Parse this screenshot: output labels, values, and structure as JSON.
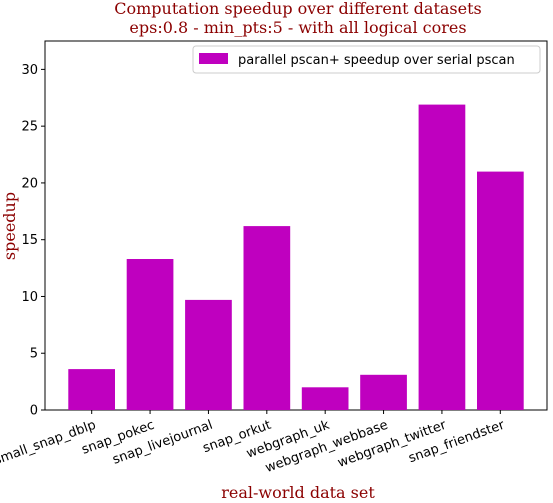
{
  "chart_data": {
    "type": "bar",
    "title": "Computation speedup over different datasets",
    "subtitle": "eps:0.8 - min_pts:5 - with all logical cores",
    "xlabel": "real-world data set",
    "ylabel": "speedup",
    "categories": [
      "small_snap_dblp",
      "snap_pokec",
      "snap_livejournal",
      "snap_orkut",
      "webgraph_uk",
      "webgraph_webbase",
      "webgraph_twitter",
      "snap_friendster"
    ],
    "series": [
      {
        "name": "parallel pscan+ speedup over serial pscan",
        "values": [
          3.6,
          13.3,
          9.7,
          16.2,
          2.0,
          3.1,
          26.9,
          21.0
        ],
        "color": "#bf00bf"
      }
    ],
    "ylim": [
      0,
      32.5
    ],
    "yticks": [
      0,
      5,
      10,
      15,
      20,
      25,
      30
    ],
    "legend_position": "top-right",
    "grid": false,
    "label_color": "#8b0000"
  }
}
